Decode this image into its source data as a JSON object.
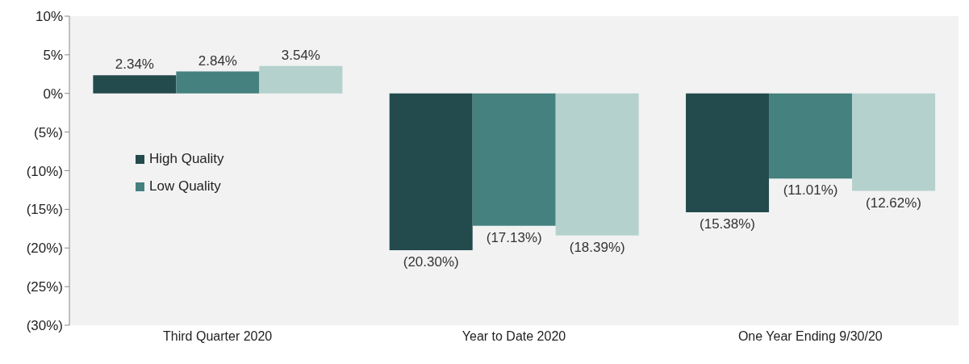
{
  "chart_data": {
    "type": "bar",
    "categories": [
      "Third Quarter 2020",
      "Year to Date 2020",
      "One Year Ending 9/30/20"
    ],
    "series": [
      {
        "name": "High Quality",
        "color": "#234a4d",
        "values": [
          2.34,
          -20.3,
          -15.38
        ],
        "value_labels": [
          "2.34%",
          "(20.30%)",
          "(15.38%)"
        ]
      },
      {
        "name": "Low Quality",
        "color": "#45817f",
        "values": [
          2.84,
          -17.13,
          -11.01
        ],
        "value_labels": [
          "2.84%",
          "(17.13%)",
          "(11.01%)"
        ]
      },
      {
        "color": "#b5d1cd",
        "values": [
          3.54,
          -18.39,
          -12.62
        ],
        "value_labels": [
          "3.54%",
          "(18.39%)",
          "(12.62%)"
        ]
      }
    ],
    "ylim": [
      -30,
      10
    ],
    "yticks": [
      {
        "value": -30,
        "label": "(30%)"
      },
      {
        "value": -25,
        "label": "(25%)"
      },
      {
        "value": -20,
        "label": "(20%)"
      },
      {
        "value": -15,
        "label": "(15%)"
      },
      {
        "value": -10,
        "label": "(10%)"
      },
      {
        "value": -5,
        "label": "(5%)"
      },
      {
        "value": 0,
        "label": "0%"
      },
      {
        "value": 5,
        "label": "5%"
      },
      {
        "value": 10,
        "label": "10%"
      }
    ],
    "grid": false,
    "legend": "left"
  }
}
